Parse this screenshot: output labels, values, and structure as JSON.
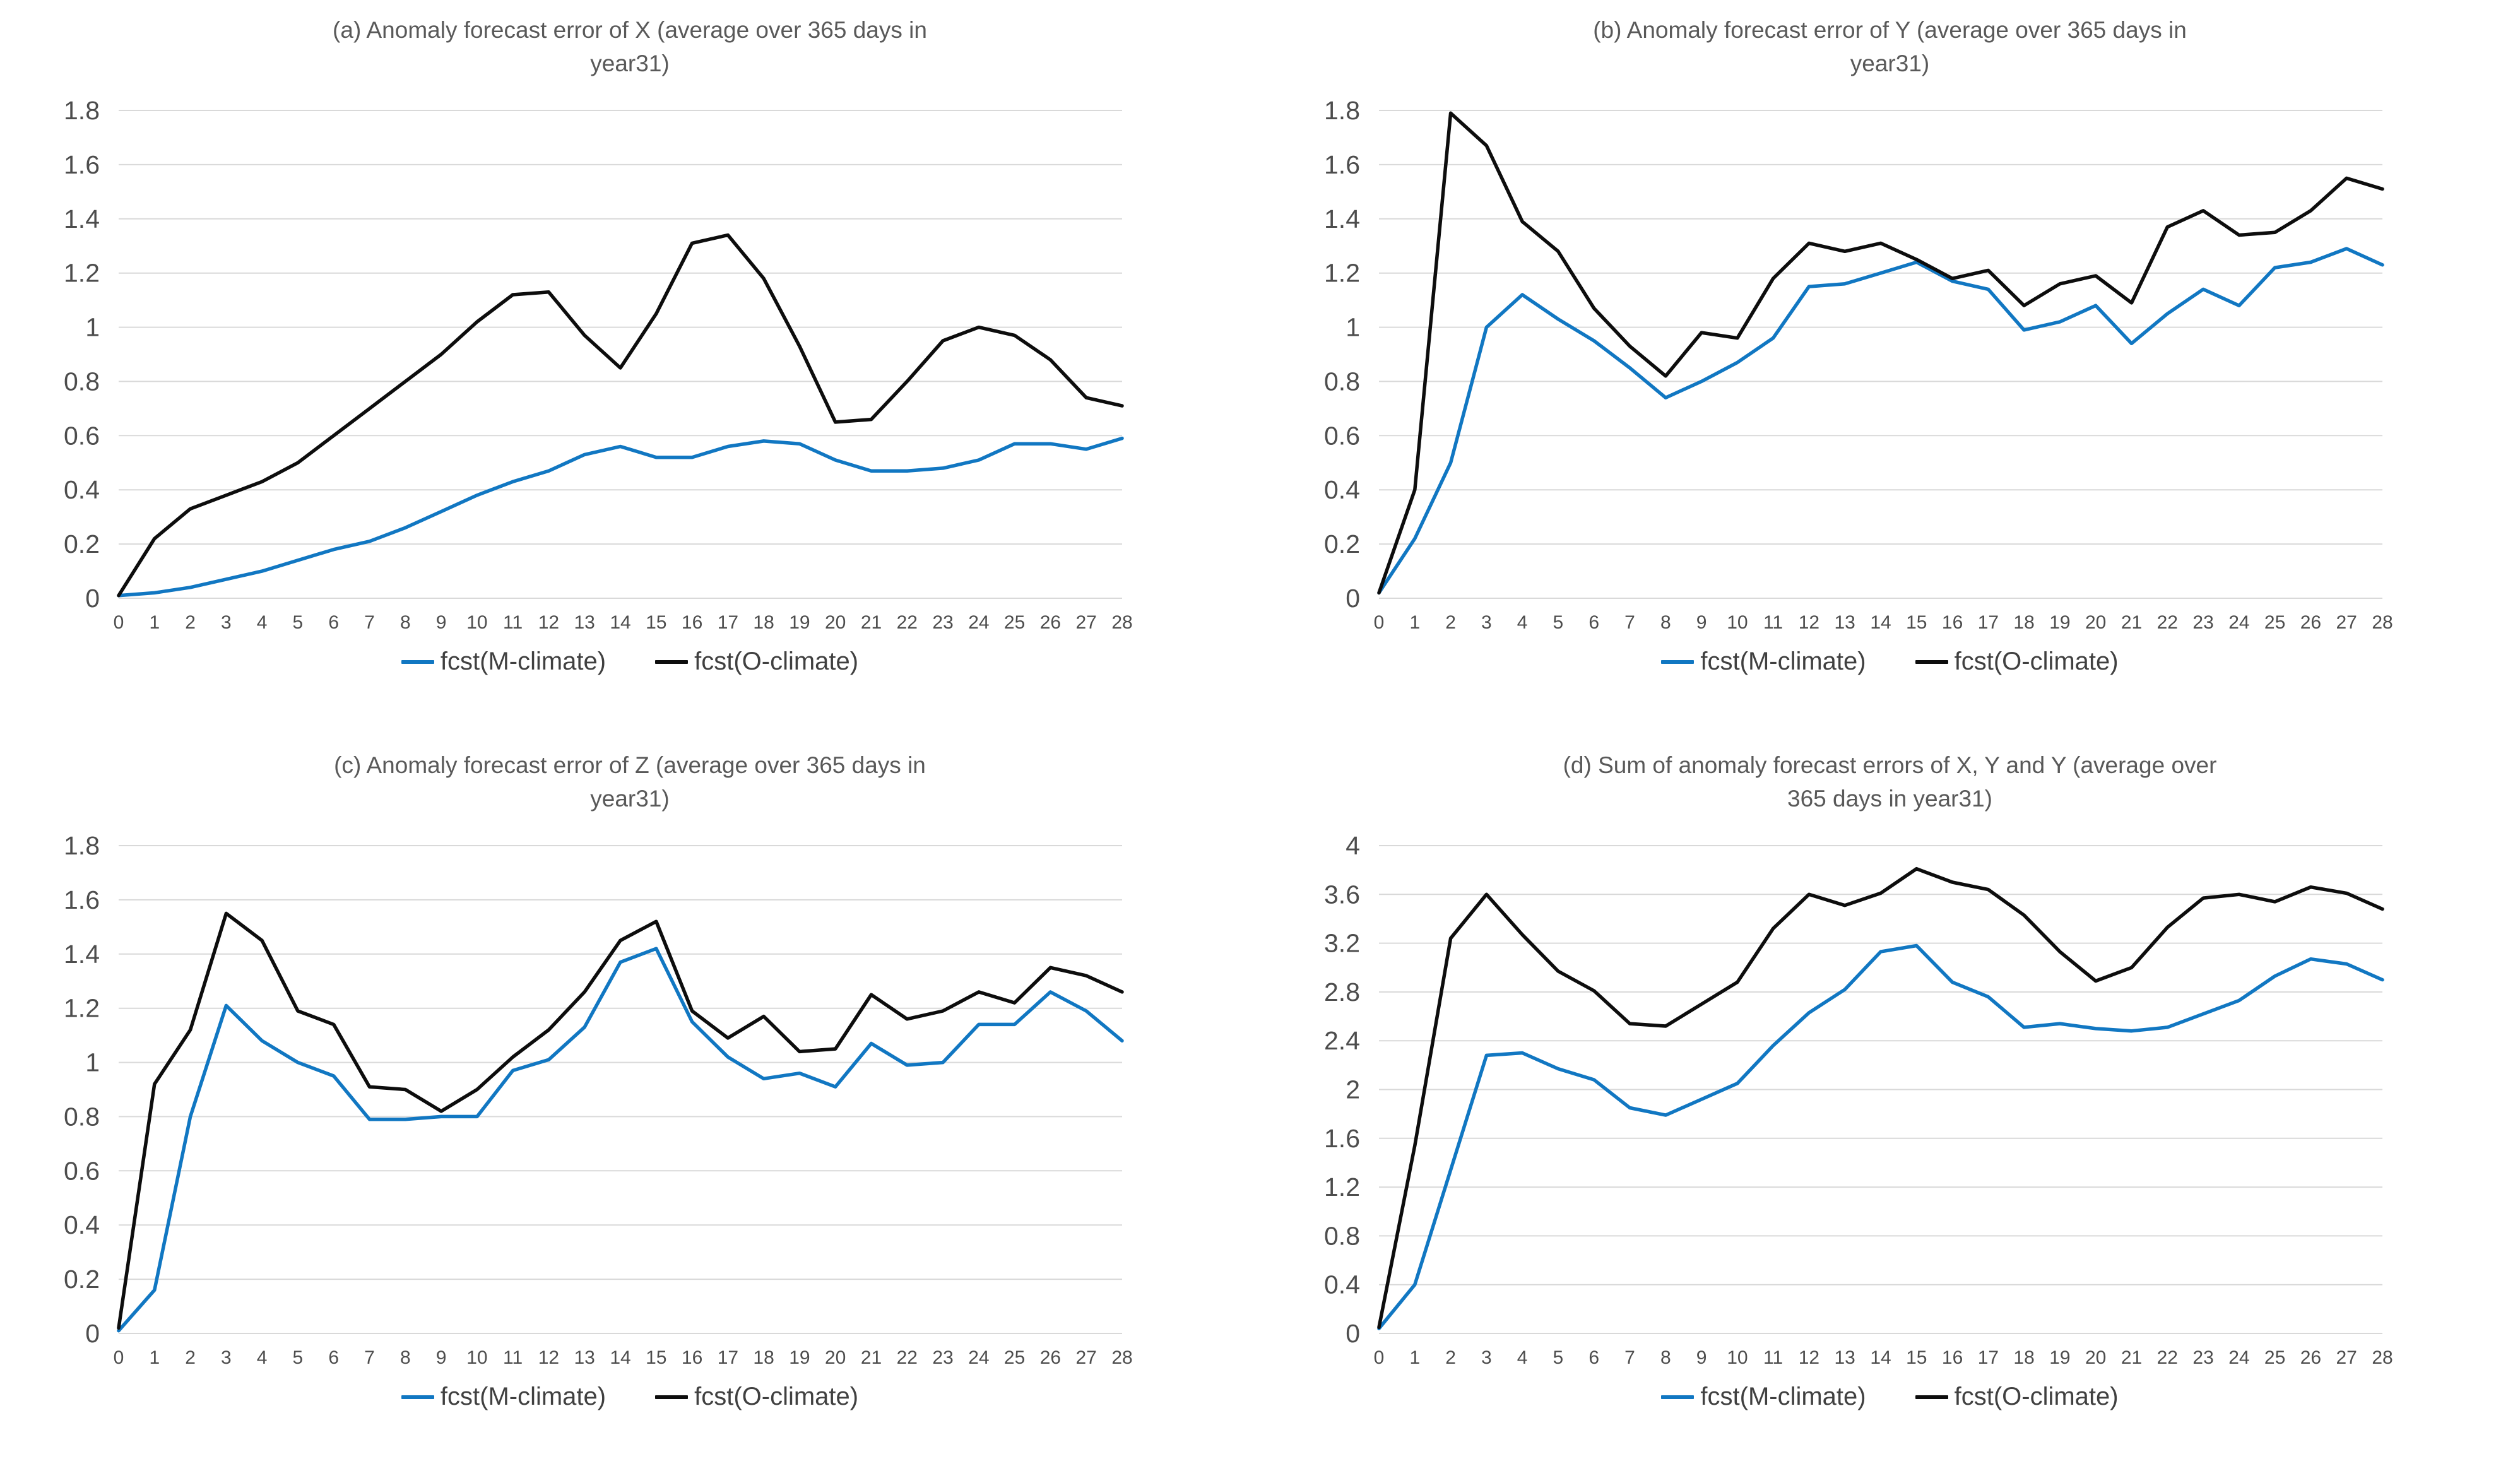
{
  "page": {
    "background": "#ffffff"
  },
  "colors": {
    "m_climate": "#1177C2",
    "o_climate": "#0d0d0d",
    "gridline": "#d9d9d9",
    "tick_text": "#4d4d4d",
    "title_text": "#595959"
  },
  "legend": {
    "m_label": "fcst(M-climate)",
    "o_label": "fcst(O-climate)",
    "position": "bottom"
  },
  "chart_data": [
    {
      "id": "a",
      "type": "line",
      "title": "(a) Anomaly forecast error of X (average over 365 days in year31)",
      "title_lines": [
        "(a) Anomaly forecast error of X (average over 365 days in",
        "year31)"
      ],
      "xlabel": "",
      "ylabel": "",
      "grid": "horizontal",
      "x": [
        0,
        1,
        2,
        3,
        4,
        5,
        6,
        7,
        8,
        9,
        10,
        11,
        12,
        13,
        14,
        15,
        16,
        17,
        18,
        19,
        20,
        21,
        22,
        23,
        24,
        25,
        26,
        27,
        28
      ],
      "ylim": [
        0,
        1.8
      ],
      "ytick_step": 0.2,
      "yticks": [
        "0",
        "0.2",
        "0.4",
        "0.6",
        "0.8",
        "1",
        "1.2",
        "1.4",
        "1.6",
        "1.8"
      ],
      "series": [
        {
          "name": "fcst(M-climate)",
          "color": "#1177C2",
          "values": [
            0.01,
            0.02,
            0.04,
            0.07,
            0.1,
            0.14,
            0.18,
            0.21,
            0.26,
            0.32,
            0.38,
            0.43,
            0.47,
            0.53,
            0.56,
            0.52,
            0.52,
            0.56,
            0.58,
            0.57,
            0.51,
            0.47,
            0.47,
            0.48,
            0.51,
            0.57,
            0.57,
            0.55,
            0.59
          ]
        },
        {
          "name": "fcst(O-climate)",
          "color": "#0d0d0d",
          "values": [
            0.01,
            0.22,
            0.33,
            0.38,
            0.43,
            0.5,
            0.6,
            0.7,
            0.8,
            0.9,
            1.02,
            1.12,
            1.13,
            0.97,
            0.85,
            1.05,
            1.31,
            1.34,
            1.18,
            0.93,
            0.65,
            0.66,
            0.8,
            0.95,
            1.0,
            0.97,
            0.88,
            0.74,
            0.71
          ]
        }
      ]
    },
    {
      "id": "b",
      "type": "line",
      "title": "(b) Anomaly forecast error of Y (average over 365 days in year31)",
      "title_lines": [
        "(b) Anomaly forecast error of Y (average over 365 days in",
        "year31)"
      ],
      "xlabel": "",
      "ylabel": "",
      "grid": "horizontal",
      "x": [
        0,
        1,
        2,
        3,
        4,
        5,
        6,
        7,
        8,
        9,
        10,
        11,
        12,
        13,
        14,
        15,
        16,
        17,
        18,
        19,
        20,
        21,
        22,
        23,
        24,
        25,
        26,
        27,
        28
      ],
      "ylim": [
        0,
        1.8
      ],
      "ytick_step": 0.2,
      "yticks": [
        "0",
        "0.2",
        "0.4",
        "0.6",
        "0.8",
        "1",
        "1.2",
        "1.4",
        "1.6",
        "1.8"
      ],
      "series": [
        {
          "name": "fcst(M-climate)",
          "color": "#1177C2",
          "values": [
            0.02,
            0.22,
            0.5,
            1.0,
            1.12,
            1.03,
            0.95,
            0.85,
            0.74,
            0.8,
            0.87,
            0.96,
            1.15,
            1.16,
            1.2,
            1.24,
            1.17,
            1.14,
            0.99,
            1.02,
            1.08,
            0.94,
            1.05,
            1.14,
            1.08,
            1.22,
            1.24,
            1.29,
            1.23
          ]
        },
        {
          "name": "fcst(O-climate)",
          "color": "#0d0d0d",
          "values": [
            0.02,
            0.4,
            1.79,
            1.67,
            1.39,
            1.28,
            1.07,
            0.93,
            0.82,
            0.98,
            0.96,
            1.18,
            1.31,
            1.28,
            1.31,
            1.25,
            1.18,
            1.21,
            1.08,
            1.16,
            1.19,
            1.09,
            1.37,
            1.43,
            1.34,
            1.35,
            1.43,
            1.55,
            1.51
          ]
        }
      ]
    },
    {
      "id": "c",
      "type": "line",
      "title": "(c) Anomaly forecast error of Z (average over 365 days in year31)",
      "title_lines": [
        "(c) Anomaly forecast error of Z (average over 365 days in",
        "year31)"
      ],
      "xlabel": "",
      "ylabel": "",
      "grid": "horizontal",
      "x": [
        0,
        1,
        2,
        3,
        4,
        5,
        6,
        7,
        8,
        9,
        10,
        11,
        12,
        13,
        14,
        15,
        16,
        17,
        18,
        19,
        20,
        21,
        22,
        23,
        24,
        25,
        26,
        27,
        28
      ],
      "ylim": [
        0,
        1.8
      ],
      "ytick_step": 0.2,
      "yticks": [
        "0",
        "0.2",
        "0.4",
        "0.6",
        "0.8",
        "1",
        "1.2",
        "1.4",
        "1.6",
        "1.8"
      ],
      "series": [
        {
          "name": "fcst(M-climate)",
          "color": "#1177C2",
          "values": [
            0.01,
            0.16,
            0.8,
            1.21,
            1.08,
            1.0,
            0.95,
            0.79,
            0.79,
            0.8,
            0.8,
            0.97,
            1.01,
            1.13,
            1.37,
            1.42,
            1.15,
            1.02,
            0.94,
            0.96,
            0.91,
            1.07,
            0.99,
            1.0,
            1.14,
            1.14,
            1.26,
            1.19,
            1.08
          ]
        },
        {
          "name": "fcst(O-climate)",
          "color": "#0d0d0d",
          "values": [
            0.02,
            0.92,
            1.12,
            1.55,
            1.45,
            1.19,
            1.14,
            0.91,
            0.9,
            0.82,
            0.9,
            1.02,
            1.12,
            1.26,
            1.45,
            1.52,
            1.19,
            1.09,
            1.17,
            1.04,
            1.05,
            1.25,
            1.16,
            1.19,
            1.26,
            1.22,
            1.35,
            1.32,
            1.26
          ]
        }
      ]
    },
    {
      "id": "d",
      "type": "line",
      "title": "(d) Sum of anomaly forecast errors of X, Y and Y (average over 365 days in  year31)",
      "title_lines": [
        "(d) Sum of anomaly forecast errors of X, Y and Y (average over",
        "365 days in  year31)"
      ],
      "xlabel": "",
      "ylabel": "",
      "grid": "horizontal",
      "x": [
        0,
        1,
        2,
        3,
        4,
        5,
        6,
        7,
        8,
        9,
        10,
        11,
        12,
        13,
        14,
        15,
        16,
        17,
        18,
        19,
        20,
        21,
        22,
        23,
        24,
        25,
        26,
        27,
        28
      ],
      "ylim": [
        0,
        4
      ],
      "ytick_step": 0.4,
      "yticks": [
        "0",
        "0.4",
        "0.8",
        "1.2",
        "1.6",
        "2",
        "2.4",
        "2.8",
        "3.2",
        "3.6",
        "4"
      ],
      "series": [
        {
          "name": "fcst(M-climate)",
          "color": "#1177C2",
          "values": [
            0.04,
            0.4,
            1.34,
            2.28,
            2.3,
            2.17,
            2.08,
            1.85,
            1.79,
            1.92,
            2.05,
            2.36,
            2.63,
            2.82,
            3.13,
            3.18,
            2.88,
            2.76,
            2.51,
            2.54,
            2.5,
            2.48,
            2.51,
            2.62,
            2.73,
            2.93,
            3.07,
            3.03,
            2.9
          ]
        },
        {
          "name": "fcst(O-climate)",
          "color": "#0d0d0d",
          "values": [
            0.05,
            1.54,
            3.24,
            3.6,
            3.27,
            2.97,
            2.81,
            2.54,
            2.52,
            2.7,
            2.88,
            3.32,
            3.6,
            3.51,
            3.61,
            3.81,
            3.7,
            3.64,
            3.43,
            3.13,
            2.89,
            3.0,
            3.33,
            3.57,
            3.6,
            3.54,
            3.66,
            3.61,
            3.48
          ]
        }
      ]
    }
  ]
}
